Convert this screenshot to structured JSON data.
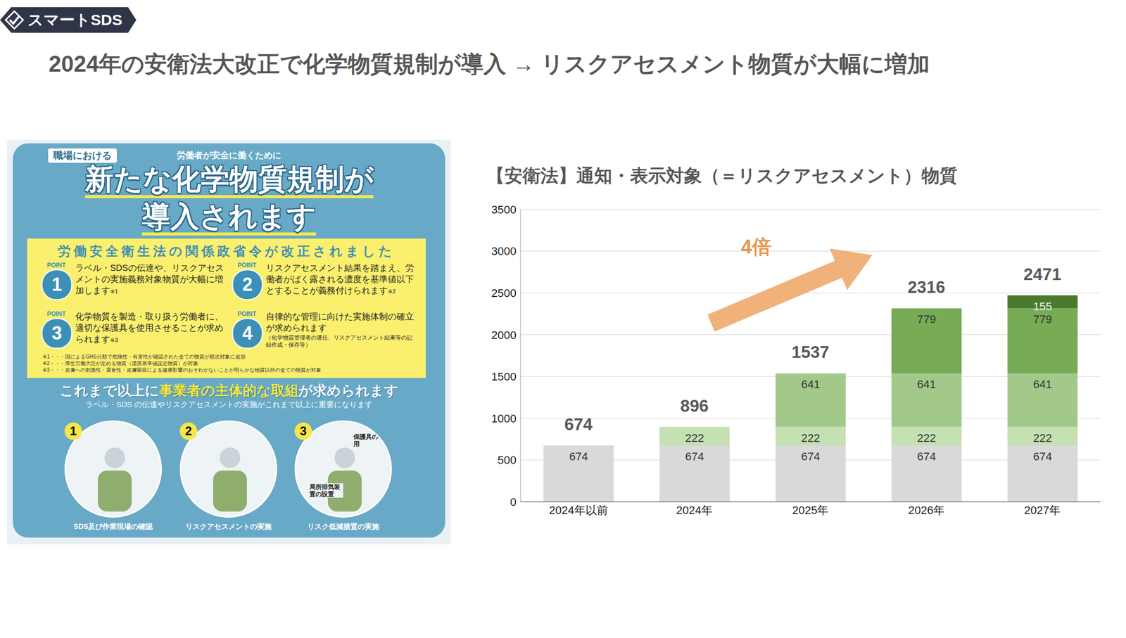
{
  "header": {
    "logo": "スマートSDS",
    "title": "2024年の安衛法大改正で化学物質規制が導入 → リスクアセスメント物質が大幅に増加"
  },
  "poster": {
    "tag": "職場における",
    "lead": "労働者が安全に働くために",
    "title_lines": [
      "新たな化学物質規制が",
      "導入されます"
    ],
    "box_header": "労働安全衛生法の関係政省令が改正されました",
    "points": [
      {
        "label": "POINT",
        "number": "1",
        "text": "ラベル・SDSの伝達や、リスクアセスメントの実施義務対象物質が大幅に増加します",
        "mark": "※1"
      },
      {
        "label": "POINT",
        "number": "2",
        "text": "リスクアセスメント結果を踏まえ、労働者がばく露される濃度を基準値以下とすることが義務付けられます",
        "mark": "※2"
      },
      {
        "label": "POINT",
        "number": "3",
        "text": "化学物質を製造・取り扱う労働者に、適切な保護具を使用させることが求められます",
        "mark": "※3"
      },
      {
        "label": "POINT",
        "number": "4",
        "text": "自律的な管理に向けた実施体制の確立が求められます",
        "note": "（化学物質管理者の選任、リスクアセスメント結果等の記録作成・保存等）"
      }
    ],
    "footnotes": [
      "※1・・・国によるGHS分類で危険性・有害性が確認された全ての物質が順次対象に追加",
      "※2・・・厚生労働大臣が定める物質（濃度基準値設定物質）が対象",
      "※3・・・皮膚への刺激性・腐食性・皮膚吸収による健康影響のおそれがないことが明らかな物質以外の全ての物質が対象"
    ],
    "message": [
      "これまで以上に",
      "事業者の主体的な取組",
      "が求められます"
    ],
    "sub_message": "ラベル・SDS の伝達やリスクアセスメントの実施がこれまで以上に重要になります",
    "steps": [
      {
        "number": "1",
        "caption": "SDS及び作業現場の確認"
      },
      {
        "number": "2",
        "caption": "リスクアセスメントの実施"
      },
      {
        "number": "3",
        "caption": "リスク低減措置の実施",
        "labels": [
          "保護具の着用",
          "局所排気装置の設置"
        ]
      }
    ]
  },
  "chart_data": {
    "type": "bar",
    "title": "【安衛法】通知・表示対象（＝リスクアセスメント）物質",
    "categories": [
      "2024年以前",
      "2024年",
      "2025年",
      "2026年",
      "2027年"
    ],
    "series": [
      {
        "color": "#d9d9d9",
        "values": [
          674,
          674,
          674,
          674,
          674
        ]
      },
      {
        "color": "#c5e0b3",
        "values": [
          null,
          222,
          222,
          222,
          222
        ]
      },
      {
        "color": "#a3c98a",
        "values": [
          null,
          null,
          641,
          641,
          641
        ]
      },
      {
        "color": "#77ab56",
        "values": [
          null,
          null,
          null,
          779,
          779
        ]
      },
      {
        "color": "#4b7a2c",
        "values": [
          null,
          null,
          null,
          null,
          155
        ]
      }
    ],
    "totals": [
      674,
      896,
      1537,
      2316,
      2471
    ],
    "annotations": [
      {
        "text": "4倍"
      }
    ],
    "ylim": [
      0,
      3500
    ],
    "yticks": [
      0,
      500,
      1000,
      1500,
      2000,
      2500,
      3000,
      3500
    ],
    "grid": true,
    "stacked": true,
    "data_labels": true
  }
}
